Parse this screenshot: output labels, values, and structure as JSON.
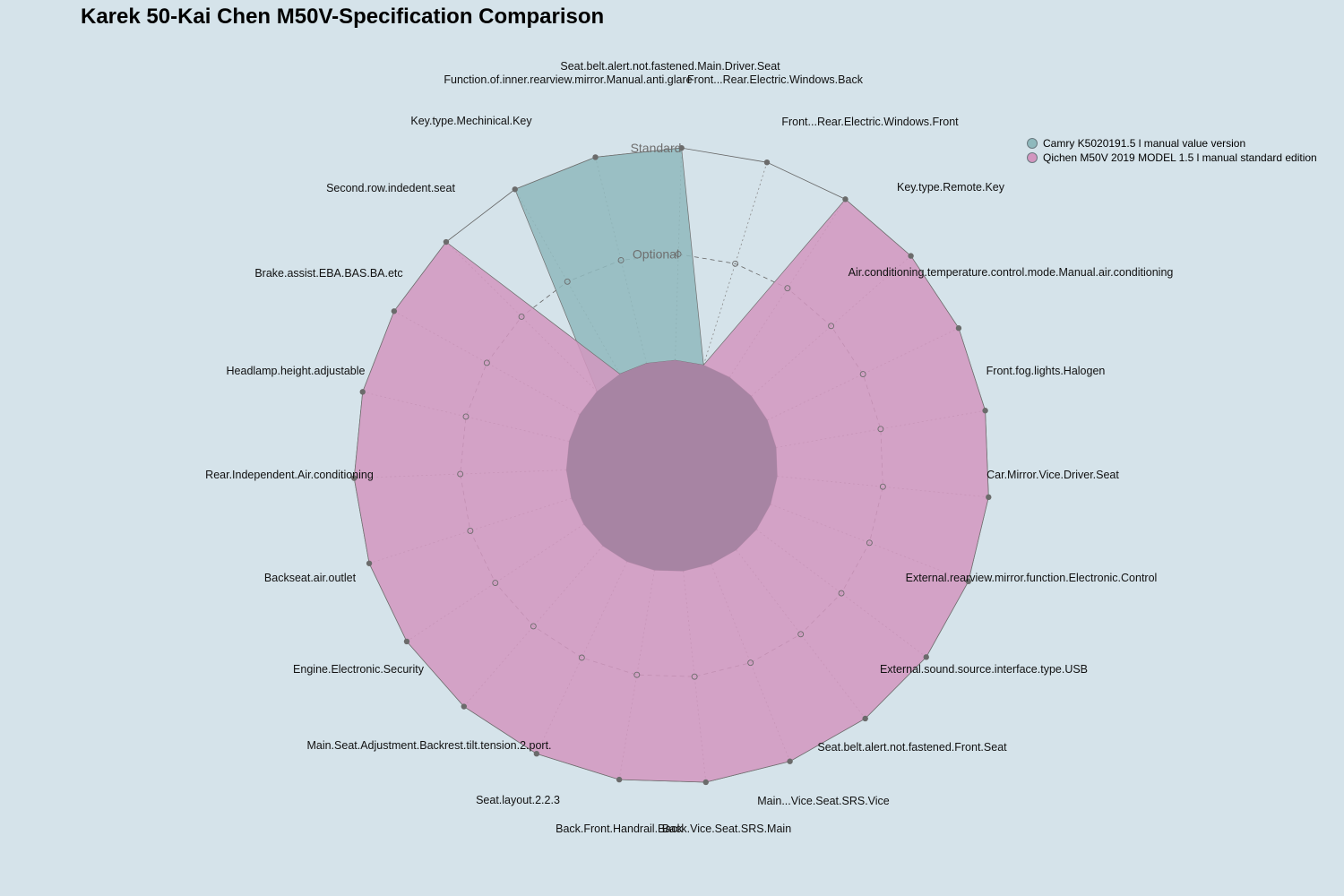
{
  "chart_data": {
    "type": "radar",
    "title": "Karek 50-Kai Chen M50V-Specification Comparison",
    "levels": [
      "",
      "Optional",
      "Standard"
    ],
    "max": 2,
    "grid": true,
    "legend_position": "top-right",
    "axes": [
      "Seat.belt.alert.not.fastened.Main.Driver.Seat",
      "Front...Rear.Electric.Windows.Back",
      "Front...Rear.Electric.Windows.Front",
      "Key.type.Remote.Key",
      "Air.conditioning.temperature.control.mode.Manual.air.conditioning",
      "Front.fog.lights.Halogen",
      "Car.Mirror.Vice.Driver.Seat",
      "External.rearview.mirror.function.Electronic.Control",
      "External.sound.source.interface.type.USB",
      "Seat.belt.alert.not.fastened.Front.Seat",
      "Main...Vice.Seat.SRS.Vice",
      "Back.Vice.Seat.SRS.Main",
      "Back.Front.Handrail.Back",
      "Seat.layout.2.2.3",
      "Main.Seat.Adjustment.Backrest.tilt.tension.2.port.",
      "Engine.Electronic.Security",
      "Backseat.air.outlet",
      "Rear.Independent.Air.conditioning",
      "Headlamp.height.adjustable",
      "Brake.assist.EBA.BAS.BA.etc",
      "Second.row.indedent.seat",
      "Key.type.Mechinical.Key",
      "Function.of.inner.rearview.mirror.Manual.anti.glare"
    ],
    "series": [
      {
        "name": "Camry K5020191.5 l manual value version",
        "color": "#8fb9bd",
        "values": [
          2,
          0,
          0,
          0,
          0,
          0,
          0,
          0,
          0,
          0,
          0,
          0,
          0,
          0,
          0,
          0,
          0,
          0,
          0,
          0,
          0,
          2,
          2
        ]
      },
      {
        "name": "Qichen M50V 2019 MODEL 1.5 l manual standard edition",
        "color": "#d296bf",
        "values": [
          0,
          0,
          2,
          2,
          2,
          2,
          2,
          2,
          2,
          2,
          2,
          2,
          2,
          2,
          2,
          2,
          2,
          2,
          2,
          2,
          2,
          0,
          0
        ]
      }
    ]
  }
}
